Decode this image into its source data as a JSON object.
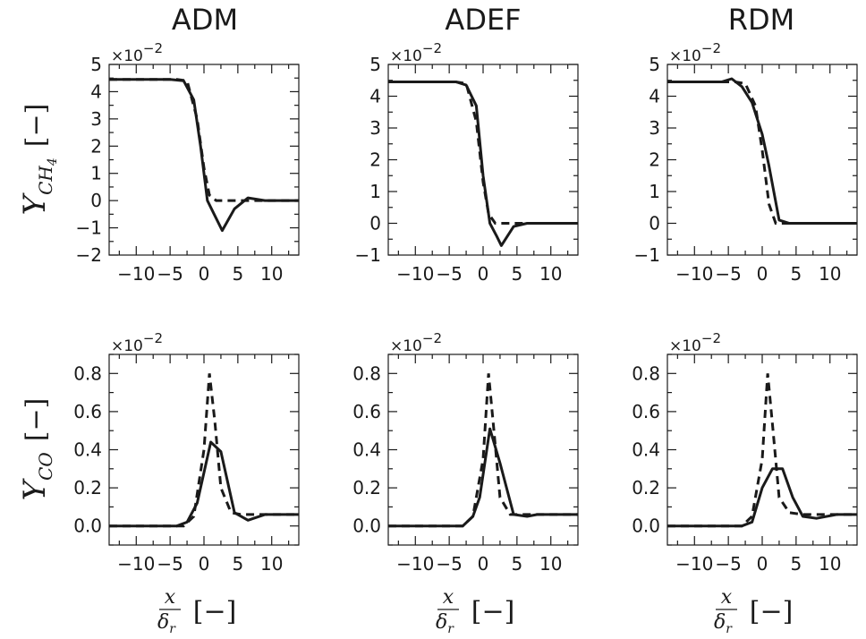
{
  "figure": {
    "column_titles": [
      "ADM",
      "ADEF",
      "RDM"
    ],
    "row_ylabels": [
      {
        "main": "Y",
        "sub": "CH",
        "subsub": "4",
        "unit": "[−]"
      },
      {
        "main": "Y",
        "sub": "CO",
        "subsub": "",
        "unit": "[−]"
      }
    ],
    "xlabel": {
      "numerator": "x",
      "denominator": "δ",
      "denominator_sub": "r",
      "unit": "[−]"
    },
    "exponent_label": "×10",
    "exponent_power": "−2",
    "color": "#1a1a1a"
  },
  "chart_data": [
    {
      "type": "line",
      "title": "ADM",
      "row": 0,
      "col": 0,
      "xlim": [
        -14,
        14
      ],
      "ylim": [
        -2,
        5
      ],
      "scale_label": "×10^-2",
      "xticks": [
        -10,
        -5,
        0,
        5,
        10
      ],
      "xtick_labels": [
        "−10",
        "−5",
        "0",
        "5",
        "10"
      ],
      "yticks": [
        -2,
        -1,
        0,
        1,
        2,
        3,
        4,
        5
      ],
      "ytick_labels": [
        "−2",
        "−1",
        "0",
        "1",
        "2",
        "3",
        "4",
        "5"
      ],
      "series": [
        {
          "style": "solid",
          "x": [
            -14,
            -5,
            -3,
            -1.5,
            -0.5,
            0.5,
            1.5,
            2.7,
            4.5,
            6.5,
            9,
            14
          ],
          "y": [
            4.45,
            4.45,
            4.4,
            3.7,
            2.0,
            0.0,
            -0.5,
            -1.1,
            -0.3,
            0.1,
            0.0,
            0.0
          ]
        },
        {
          "style": "dashed",
          "x": [
            -14,
            -4,
            -2.5,
            -1,
            0,
            0.8,
            1.8,
            3,
            14
          ],
          "y": [
            4.45,
            4.45,
            4.4,
            3.0,
            1.2,
            0.2,
            0.0,
            0.0,
            0.0
          ]
        }
      ]
    },
    {
      "type": "line",
      "title": "ADEF",
      "row": 0,
      "col": 1,
      "xlim": [
        -14,
        14
      ],
      "ylim": [
        -1,
        5
      ],
      "scale_label": "×10^-2",
      "xticks": [
        -10,
        -5,
        0,
        5,
        10
      ],
      "xtick_labels": [
        "−10",
        "−5",
        "0",
        "5",
        "10"
      ],
      "yticks": [
        -1,
        0,
        1,
        2,
        3,
        4,
        5
      ],
      "ytick_labels": [
        "−1",
        "0",
        "1",
        "2",
        "3",
        "4",
        "5"
      ],
      "series": [
        {
          "style": "solid",
          "x": [
            -14,
            -4,
            -2.5,
            -1,
            0,
            1,
            2,
            2.7,
            4.5,
            6.5,
            14
          ],
          "y": [
            4.45,
            4.45,
            4.35,
            3.7,
            1.5,
            0.0,
            -0.4,
            -0.7,
            -0.1,
            0.0,
            0.0
          ]
        },
        {
          "style": "dashed",
          "x": [
            -14,
            -4,
            -2.5,
            -1,
            0,
            0.8,
            1.8,
            3,
            14
          ],
          "y": [
            4.45,
            4.45,
            4.4,
            3.2,
            1.3,
            0.3,
            0.0,
            0.0,
            0.0
          ]
        }
      ]
    },
    {
      "type": "line",
      "title": "RDM",
      "row": 0,
      "col": 2,
      "xlim": [
        -14,
        14
      ],
      "ylim": [
        -1,
        5
      ],
      "scale_label": "×10^-2",
      "xticks": [
        -10,
        -5,
        0,
        5,
        10
      ],
      "xtick_labels": [
        "−10",
        "−5",
        "0",
        "5",
        "10"
      ],
      "yticks": [
        -1,
        0,
        1,
        2,
        3,
        4,
        5
      ],
      "ytick_labels": [
        "−1",
        "0",
        "1",
        "2",
        "3",
        "4",
        "5"
      ],
      "series": [
        {
          "style": "solid",
          "x": [
            -14,
            -6,
            -4.5,
            -3,
            -1.5,
            0,
            1,
            2.5,
            4,
            14
          ],
          "y": [
            4.45,
            4.45,
            4.55,
            4.3,
            3.8,
            2.8,
            1.8,
            0.1,
            0.0,
            0.0
          ]
        },
        {
          "style": "dashed",
          "x": [
            -14,
            -4,
            -2.5,
            -1,
            0,
            1,
            2,
            3,
            14
          ],
          "y": [
            4.45,
            4.45,
            4.4,
            3.7,
            2.3,
            0.6,
            0.0,
            0.0,
            0.0
          ]
        }
      ]
    },
    {
      "type": "line",
      "title": "",
      "row": 1,
      "col": 0,
      "xlim": [
        -14,
        14
      ],
      "ylim": [
        -0.1,
        0.9
      ],
      "scale_label": "×10^-2",
      "xticks": [
        -10,
        -5,
        0,
        5,
        10
      ],
      "xtick_labels": [
        "−10",
        "−5",
        "0",
        "5",
        "10"
      ],
      "yticks": [
        0.0,
        0.2,
        0.4,
        0.6,
        0.8
      ],
      "ytick_labels": [
        "0.0",
        "0.2",
        "0.4",
        "0.6",
        "0.8"
      ],
      "series": [
        {
          "style": "solid",
          "x": [
            -14,
            -4,
            -2.5,
            -1,
            1,
            2.5,
            4.5,
            6.5,
            9,
            14
          ],
          "y": [
            0.0,
            0.0,
            0.02,
            0.12,
            0.44,
            0.39,
            0.07,
            0.03,
            0.06,
            0.06
          ]
        },
        {
          "style": "dashed",
          "x": [
            -14,
            -3,
            -1.5,
            0,
            0.8,
            1.6,
            2.5,
            4,
            5.5,
            14
          ],
          "y": [
            0.0,
            0.0,
            0.05,
            0.4,
            0.8,
            0.55,
            0.2,
            0.07,
            0.06,
            0.06
          ]
        }
      ]
    },
    {
      "type": "line",
      "title": "",
      "row": 1,
      "col": 1,
      "xlim": [
        -14,
        14
      ],
      "ylim": [
        -0.1,
        0.9
      ],
      "scale_label": "×10^-2",
      "xticks": [
        -10,
        -5,
        0,
        5,
        10
      ],
      "xtick_labels": [
        "−10",
        "−5",
        "0",
        "5",
        "10"
      ],
      "yticks": [
        0.0,
        0.2,
        0.4,
        0.6,
        0.8
      ],
      "ytick_labels": [
        "0.0",
        "0.2",
        "0.4",
        "0.6",
        "0.8"
      ],
      "series": [
        {
          "style": "solid",
          "x": [
            -14,
            -3,
            -1.5,
            -0.5,
            1,
            2.5,
            4.5,
            6.5,
            8,
            14
          ],
          "y": [
            0.0,
            0.0,
            0.05,
            0.15,
            0.51,
            0.33,
            0.06,
            0.05,
            0.06,
            0.06
          ]
        },
        {
          "style": "dashed",
          "x": [
            -14,
            -3,
            -1.5,
            0,
            0.8,
            1.6,
            2.5,
            4,
            14
          ],
          "y": [
            0.0,
            0.0,
            0.05,
            0.35,
            0.8,
            0.5,
            0.15,
            0.06,
            0.06
          ]
        }
      ]
    },
    {
      "type": "line",
      "title": "",
      "row": 1,
      "col": 2,
      "xlim": [
        -14,
        14
      ],
      "ylim": [
        -0.1,
        0.9
      ],
      "scale_label": "×10^-2",
      "xticks": [
        -10,
        -5,
        0,
        5,
        10
      ],
      "xtick_labels": [
        "−10",
        "−5",
        "0",
        "5",
        "10"
      ],
      "yticks": [
        0.0,
        0.2,
        0.4,
        0.6,
        0.8
      ],
      "ytick_labels": [
        "0.0",
        "0.2",
        "0.4",
        "0.6",
        "0.8"
      ],
      "series": [
        {
          "style": "solid",
          "x": [
            -14,
            -3,
            -1.5,
            0,
            1.5,
            3,
            4.5,
            6,
            8,
            11,
            14
          ],
          "y": [
            0.0,
            0.0,
            0.02,
            0.2,
            0.3,
            0.3,
            0.15,
            0.05,
            0.04,
            0.06,
            0.06
          ]
        },
        {
          "style": "dashed",
          "x": [
            -14,
            -3,
            -1.5,
            0,
            0.8,
            1.6,
            2.5,
            4,
            6,
            14
          ],
          "y": [
            0.0,
            0.0,
            0.05,
            0.35,
            0.8,
            0.5,
            0.15,
            0.07,
            0.06,
            0.06
          ]
        }
      ]
    }
  ]
}
